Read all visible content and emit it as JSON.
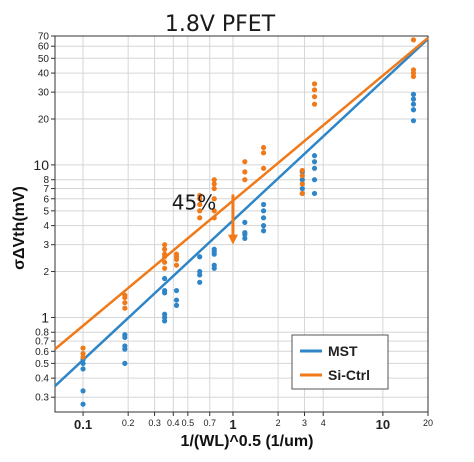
{
  "chart_data": {
    "type": "scatter",
    "title": "1.8V PFET",
    "xlabel": "1/(WL)^0.5 (1/um)",
    "ylabel": "σΔVth(mV)",
    "xscale": "log",
    "yscale": "log",
    "xlim": [
      0.065,
      20
    ],
    "ylim": [
      0.24,
      70
    ],
    "x_ticks": [
      {
        "value": 0.1,
        "label": "0.1",
        "major": true
      },
      {
        "value": 0.2,
        "label": "0.2",
        "major": false
      },
      {
        "value": 0.3,
        "label": "0.3",
        "major": false
      },
      {
        "value": 0.4,
        "label": "0.4",
        "major": false
      },
      {
        "value": 0.5,
        "label": "0.5",
        "major": false
      },
      {
        "value": 0.7,
        "label": "0.7",
        "major": false
      },
      {
        "value": 1,
        "label": "1",
        "major": true
      },
      {
        "value": 2,
        "label": "2",
        "major": false
      },
      {
        "value": 3,
        "label": "3",
        "major": false
      },
      {
        "value": 4,
        "label": "4",
        "major": false
      },
      {
        "value": 10,
        "label": "10",
        "major": true
      },
      {
        "value": 20,
        "label": "20",
        "major": false
      }
    ],
    "y_ticks": [
      {
        "value": 0.3,
        "label": "0.3",
        "major": false
      },
      {
        "value": 0.4,
        "label": "0.4",
        "major": false
      },
      {
        "value": 0.5,
        "label": "0.5",
        "major": false
      },
      {
        "value": 0.6,
        "label": "0.6",
        "major": false
      },
      {
        "value": 0.7,
        "label": "0.7",
        "major": false
      },
      {
        "value": 0.8,
        "label": "0.8",
        "major": false
      },
      {
        "value": 1,
        "label": "1",
        "major": true
      },
      {
        "value": 2,
        "label": "2",
        "major": false
      },
      {
        "value": 3,
        "label": "3",
        "major": false
      },
      {
        "value": 4,
        "label": "4",
        "major": false
      },
      {
        "value": 5,
        "label": "5",
        "major": false
      },
      {
        "value": 6,
        "label": "6",
        "major": false
      },
      {
        "value": 7,
        "label": "7",
        "major": false
      },
      {
        "value": 8,
        "label": "8",
        "major": false
      },
      {
        "value": 10,
        "label": "10",
        "major": true
      },
      {
        "value": 20,
        "label": "20",
        "major": false
      },
      {
        "value": 30,
        "label": "30",
        "major": false
      },
      {
        "value": 40,
        "label": "40",
        "major": false
      },
      {
        "value": 50,
        "label": "50",
        "major": false
      },
      {
        "value": 60,
        "label": "60",
        "major": false
      },
      {
        "value": 70,
        "label": "70",
        "major": false
      }
    ],
    "grid": true,
    "legend": "bottom-right",
    "series": [
      {
        "name": "MST",
        "color": "#2e86c8",
        "points": [
          [
            0.1,
            0.27
          ],
          [
            0.1,
            0.33
          ],
          [
            0.1,
            0.46
          ],
          [
            0.1,
            0.5
          ],
          [
            0.1,
            0.53
          ],
          [
            0.19,
            0.5
          ],
          [
            0.19,
            0.62
          ],
          [
            0.19,
            0.65
          ],
          [
            0.19,
            0.74
          ],
          [
            0.19,
            0.77
          ],
          [
            0.35,
            0.95
          ],
          [
            0.35,
            1.0
          ],
          [
            0.35,
            1.05
          ],
          [
            0.35,
            1.45
          ],
          [
            0.35,
            1.5
          ],
          [
            0.35,
            1.8
          ],
          [
            0.42,
            1.2
          ],
          [
            0.42,
            1.3
          ],
          [
            0.42,
            1.5
          ],
          [
            0.6,
            1.7
          ],
          [
            0.6,
            1.9
          ],
          [
            0.6,
            2.0
          ],
          [
            0.6,
            2.5
          ],
          [
            0.75,
            2.1
          ],
          [
            0.75,
            2.2
          ],
          [
            0.75,
            2.6
          ],
          [
            0.75,
            2.7
          ],
          [
            0.75,
            2.8
          ],
          [
            1.2,
            3.3
          ],
          [
            1.2,
            3.5
          ],
          [
            1.2,
            3.6
          ],
          [
            1.2,
            4.2
          ],
          [
            1.6,
            3.7
          ],
          [
            1.6,
            4.0
          ],
          [
            1.6,
            4.5
          ],
          [
            1.6,
            5.0
          ],
          [
            1.6,
            5.5
          ],
          [
            2.9,
            6.5
          ],
          [
            2.9,
            7.0
          ],
          [
            2.9,
            8.0
          ],
          [
            2.9,
            9.0
          ],
          [
            3.5,
            6.5
          ],
          [
            3.5,
            8.0
          ],
          [
            3.5,
            9.5
          ],
          [
            3.5,
            10.5
          ],
          [
            3.5,
            11.5
          ],
          [
            16,
            19.5
          ],
          [
            16,
            23
          ],
          [
            16,
            25
          ],
          [
            16,
            27
          ],
          [
            16,
            29
          ]
        ],
        "fit": [
          [
            0.065,
            0.355
          ],
          [
            20,
            67
          ]
        ]
      },
      {
        "name": "Si-Ctrl",
        "color": "#f07a1a",
        "points": [
          [
            0.1,
            0.55
          ],
          [
            0.1,
            0.58
          ],
          [
            0.1,
            0.63
          ],
          [
            0.19,
            1.15
          ],
          [
            0.19,
            1.25
          ],
          [
            0.19,
            1.35
          ],
          [
            0.19,
            1.4
          ],
          [
            0.35,
            2.1
          ],
          [
            0.35,
            2.3
          ],
          [
            0.35,
            2.5
          ],
          [
            0.35,
            2.6
          ],
          [
            0.35,
            2.8
          ],
          [
            0.35,
            3.0
          ],
          [
            0.42,
            2.2
          ],
          [
            0.42,
            2.4
          ],
          [
            0.42,
            2.5
          ],
          [
            0.42,
            2.6
          ],
          [
            0.6,
            4.5
          ],
          [
            0.6,
            5.0
          ],
          [
            0.6,
            5.5
          ],
          [
            0.6,
            6.0
          ],
          [
            0.6,
            6.3
          ],
          [
            0.75,
            4.5
          ],
          [
            0.75,
            5.0
          ],
          [
            0.75,
            6.0
          ],
          [
            0.75,
            7.0
          ],
          [
            0.75,
            7.5
          ],
          [
            0.75,
            8.0
          ],
          [
            1.2,
            8.0
          ],
          [
            1.2,
            9.0
          ],
          [
            1.2,
            10.5
          ],
          [
            1.6,
            9.5
          ],
          [
            1.6,
            12.0
          ],
          [
            1.6,
            13.0
          ],
          [
            2.9,
            6.5
          ],
          [
            2.9,
            7.5
          ],
          [
            2.9,
            8.5
          ],
          [
            2.9,
            9.2
          ],
          [
            3.5,
            25.0
          ],
          [
            3.5,
            28.0
          ],
          [
            3.5,
            31.0
          ],
          [
            3.5,
            34.0
          ],
          [
            16,
            38.0
          ],
          [
            16,
            40.0
          ],
          [
            16,
            42.0
          ],
          [
            16,
            66.0
          ]
        ],
        "fit": [
          [
            0.065,
            0.62
          ],
          [
            20,
            68
          ]
        ]
      }
    ],
    "annotations": [
      {
        "text": "45%",
        "x": 0.55,
        "y": 5.1
      },
      {
        "type": "arrow",
        "color": "#f07a1a",
        "x": 1.0,
        "y_from": 6.4,
        "y_to": 3.0
      }
    ]
  }
}
